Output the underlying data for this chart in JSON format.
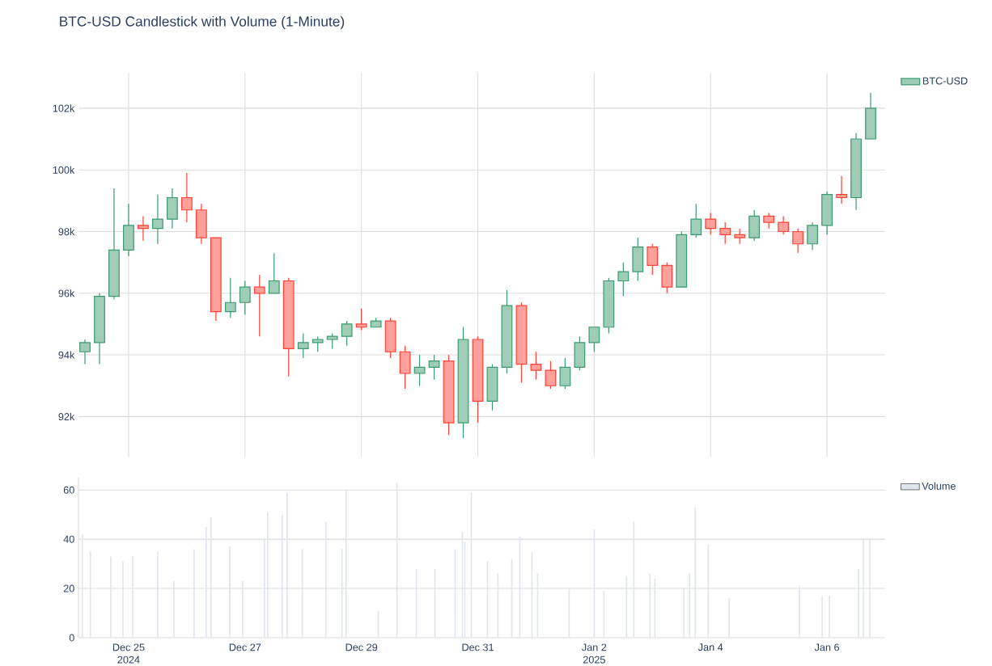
{
  "chart_data": [
    {
      "type": "candlestick",
      "title": "BTC-USD Candlestick with Volume (1-Minute)",
      "series": [
        {
          "name": "BTC-USD",
          "x": [
            "2024-12-24T06:00",
            "2024-12-24T12:00",
            "2024-12-24T18:00",
            "2024-12-25T00:00",
            "2024-12-25T06:00",
            "2024-12-25T12:00",
            "2024-12-25T18:00",
            "2024-12-26T00:00",
            "2024-12-26T06:00",
            "2024-12-26T12:00",
            "2024-12-26T18:00",
            "2024-12-27T00:00",
            "2024-12-27T06:00",
            "2024-12-27T12:00",
            "2024-12-27T18:00",
            "2024-12-28T00:00",
            "2024-12-28T06:00",
            "2024-12-28T12:00",
            "2024-12-28T18:00",
            "2024-12-29T00:00",
            "2024-12-29T06:00",
            "2024-12-29T12:00",
            "2024-12-29T18:00",
            "2024-12-30T00:00",
            "2024-12-30T06:00",
            "2024-12-30T12:00",
            "2024-12-30T18:00",
            "2024-12-31T00:00",
            "2024-12-31T06:00",
            "2024-12-31T12:00",
            "2024-12-31T18:00",
            "2025-01-01T00:00",
            "2025-01-01T06:00",
            "2025-01-01T12:00",
            "2025-01-01T18:00",
            "2025-01-02T00:00",
            "2025-01-02T06:00",
            "2025-01-02T12:00",
            "2025-01-02T18:00",
            "2025-01-03T00:00",
            "2025-01-03T06:00",
            "2025-01-03T12:00",
            "2025-01-03T18:00",
            "2025-01-04T00:00",
            "2025-01-04T06:00",
            "2025-01-04T12:00",
            "2025-01-04T18:00",
            "2025-01-05T00:00",
            "2025-01-05T06:00",
            "2025-01-05T12:00",
            "2025-01-05T18:00",
            "2025-01-06T00:00",
            "2025-01-06T06:00",
            "2025-01-06T12:00",
            "2025-01-06T18:00"
          ],
          "ohlc": [
            [
              94100,
              94500,
              93700,
              94400
            ],
            [
              94400,
              96000,
              93700,
              95900
            ],
            [
              95900,
              99400,
              95800,
              97400
            ],
            [
              97400,
              98900,
              97200,
              98200
            ],
            [
              98200,
              98500,
              97700,
              98100
            ],
            [
              98100,
              99200,
              97600,
              98400
            ],
            [
              98400,
              99400,
              98100,
              99100
            ],
            [
              99100,
              99900,
              98300,
              98700
            ],
            [
              98700,
              98900,
              97600,
              97800
            ],
            [
              97800,
              97800,
              95100,
              95400
            ],
            [
              95400,
              96500,
              95200,
              95700
            ],
            [
              95700,
              96400,
              95300,
              96200
            ],
            [
              96200,
              96600,
              94600,
              96000
            ],
            [
              96000,
              97300,
              96000,
              96400
            ],
            [
              96400,
              96500,
              93300,
              94200
            ],
            [
              94200,
              94700,
              93900,
              94400
            ],
            [
              94400,
              94600,
              94100,
              94500
            ],
            [
              94500,
              94700,
              94200,
              94600
            ],
            [
              94600,
              95100,
              94300,
              95000
            ],
            [
              95000,
              95500,
              94800,
              94900
            ],
            [
              94900,
              95200,
              94900,
              95100
            ],
            [
              95100,
              95200,
              93900,
              94100
            ],
            [
              94100,
              94300,
              92900,
              93400
            ],
            [
              93400,
              94000,
              93000,
              93600
            ],
            [
              93600,
              94000,
              93200,
              93800
            ],
            [
              93800,
              94000,
              91400,
              91800
            ],
            [
              91800,
              94900,
              91300,
              94500
            ],
            [
              94500,
              94600,
              91800,
              92500
            ],
            [
              92500,
              93700,
              92200,
              93600
            ],
            [
              93600,
              96100,
              93400,
              95600
            ],
            [
              95600,
              95700,
              93100,
              93700
            ],
            [
              93700,
              94100,
              93200,
              93500
            ],
            [
              93500,
              93800,
              92900,
              93000
            ],
            [
              93000,
              93900,
              92900,
              93600
            ],
            [
              93600,
              94600,
              93500,
              94400
            ],
            [
              94400,
              94900,
              94100,
              94900
            ],
            [
              94900,
              96500,
              94700,
              96400
            ],
            [
              96400,
              97000,
              95900,
              96700
            ],
            [
              96700,
              97800,
              96400,
              97500
            ],
            [
              97500,
              97600,
              96600,
              96900
            ],
            [
              96900,
              97000,
              96000,
              96200
            ],
            [
              96200,
              98000,
              96200,
              97900
            ],
            [
              97900,
              98900,
              97800,
              98400
            ],
            [
              98400,
              98600,
              97900,
              98100
            ],
            [
              98100,
              98300,
              97600,
              97900
            ],
            [
              97900,
              98100,
              97600,
              97800
            ],
            [
              97800,
              98700,
              97700,
              98500
            ],
            [
              98500,
              98600,
              98100,
              98300
            ],
            [
              98300,
              98500,
              97900,
              98000
            ],
            [
              98000,
              98100,
              97300,
              97600
            ],
            [
              97600,
              98300,
              97400,
              98200
            ],
            [
              98200,
              99300,
              97900,
              99200
            ],
            [
              99200,
              99800,
              98900,
              99100
            ],
            [
              99100,
              101200,
              98700,
              101000
            ],
            [
              101000,
              102500,
              101000,
              102000
            ]
          ],
          "colors": [
            "#3d9970",
            "#3d9970",
            "#3d9970",
            "#3d9970",
            "#ff4136",
            "#3d9970",
            "#3d9970",
            "#ff4136",
            "#ff4136",
            "#ff4136",
            "#3d9970",
            "#3d9970",
            "#ff4136",
            "#3d9970",
            "#ff4136",
            "#3d9970",
            "#3d9970",
            "#3d9970",
            "#3d9970",
            "#ff4136",
            "#3d9970",
            "#ff4136",
            "#ff4136",
            "#3d9970",
            "#3d9970",
            "#ff4136",
            "#3d9970",
            "#ff4136",
            "#3d9970",
            "#3d9970",
            "#ff4136",
            "#ff4136",
            "#ff4136",
            "#3d9970",
            "#3d9970",
            "#3d9970",
            "#3d9970",
            "#3d9970",
            "#3d9970",
            "#ff4136",
            "#ff4136",
            "#3d9970",
            "#3d9970",
            "#ff4136",
            "#ff4136",
            "#ff4136",
            "#3d9970",
            "#ff4136",
            "#ff4136",
            "#ff4136",
            "#3d9970",
            "#3d9970",
            "#ff4136",
            "#3d9970",
            "#3d9970"
          ]
        }
      ],
      "xlim": [
        "2024-12-24T03:20",
        "2025-01-07T00:00"
      ],
      "xticks": [
        {
          "value": "2024-12-25",
          "label": null
        },
        {
          "value": "2024-12-27",
          "label": null
        },
        {
          "value": "2024-12-29",
          "label": null
        },
        {
          "value": "2024-12-31",
          "label": null
        },
        {
          "value": "2025-01-02",
          "label": null
        },
        {
          "value": "2025-01-04",
          "label": null
        },
        {
          "value": "2025-01-06",
          "label": null
        }
      ],
      "ylim": [
        90700,
        103150
      ],
      "yticks": [
        {
          "value": 92000,
          "label": "92k"
        },
        {
          "value": 94000,
          "label": "94k"
        },
        {
          "value": 96000,
          "label": "96k"
        },
        {
          "value": 98000,
          "label": "98k"
        },
        {
          "value": 100000,
          "label": "100k"
        },
        {
          "value": 102000,
          "label": "102k"
        }
      ],
      "grid": true,
      "legend": "top right",
      "tick_labels": "y"
    },
    {
      "type": "bar",
      "series": [
        {
          "name": "Volume",
          "color": "#dfe5ef",
          "x": [
            "2024-12-24T04:54",
            "2024-12-24T08:14",
            "2024-12-24T16:40",
            "2024-12-24T21:40",
            "2024-12-25T01:40",
            "2024-12-25T12:00",
            "2024-12-25T18:40",
            "2024-12-26T03:00",
            "2024-12-26T08:00",
            "2024-12-26T10:00",
            "2024-12-26T17:40",
            "2024-12-26T23:00",
            "2024-12-27T08:00",
            "2024-12-27T09:20",
            "2024-12-27T15:20",
            "2024-12-27T17:20",
            "2024-12-27T23:40",
            "2024-12-28T09:20",
            "2024-12-28T16:00",
            "2024-12-28T17:40",
            "2024-12-29T07:00",
            "2024-12-29T14:40",
            "2024-12-29T22:40",
            "2024-12-30T06:20",
            "2024-12-30T14:40",
            "2024-12-30T17:40",
            "2024-12-30T18:40",
            "2024-12-30T21:20",
            "2024-12-31T04:00",
            "2024-12-31T08:20",
            "2024-12-31T14:00",
            "2024-12-31T17:20",
            "2024-12-31T22:20",
            "2025-01-01T00:40",
            "2025-01-01T13:40",
            "2025-01-02T00:00",
            "2025-01-02T04:00",
            "2025-01-02T13:20",
            "2025-01-02T16:20",
            "2025-01-02T23:00",
            "2025-01-03T01:00",
            "2025-01-03T13:00",
            "2025-01-03T15:20",
            "2025-01-03T17:40",
            "2025-01-03T23:00",
            "2025-01-04T07:40",
            "2025-01-05T12:40",
            "2025-01-05T22:00",
            "2025-01-06T01:00",
            "2025-01-06T13:00",
            "2025-01-06T15:00",
            "2025-01-06T17:40"
          ],
          "values": [
            42,
            35,
            33,
            31,
            33,
            35,
            23,
            36,
            45,
            49,
            37,
            23,
            40,
            51,
            50,
            59,
            36,
            47,
            36,
            60,
            11,
            63,
            28,
            28,
            36,
            43,
            39,
            59,
            31,
            26,
            32,
            41,
            35,
            26,
            20,
            44,
            19,
            25,
            47,
            26,
            24,
            20,
            26,
            53,
            38,
            16,
            21,
            17,
            17,
            28,
            40,
            40
          ]
        }
      ],
      "xlim": [
        "2024-12-24T03:20",
        "2025-01-07T00:00"
      ],
      "xticks": [
        {
          "value": "2024-12-25",
          "label": "Dec 25\n2024"
        },
        {
          "value": "2024-12-27",
          "label": "Dec 27"
        },
        {
          "value": "2024-12-29",
          "label": "Dec 29"
        },
        {
          "value": "2024-12-31",
          "label": "Dec 31"
        },
        {
          "value": "2025-01-02",
          "label": "Jan 2\n2025"
        },
        {
          "value": "2025-01-04",
          "label": "Jan 4"
        },
        {
          "value": "2025-01-06",
          "label": "Jan 6"
        }
      ],
      "ylim": [
        0,
        65
      ],
      "yticks": [
        0,
        20,
        40,
        60
      ],
      "grid": "y",
      "legend": "top right"
    }
  ]
}
